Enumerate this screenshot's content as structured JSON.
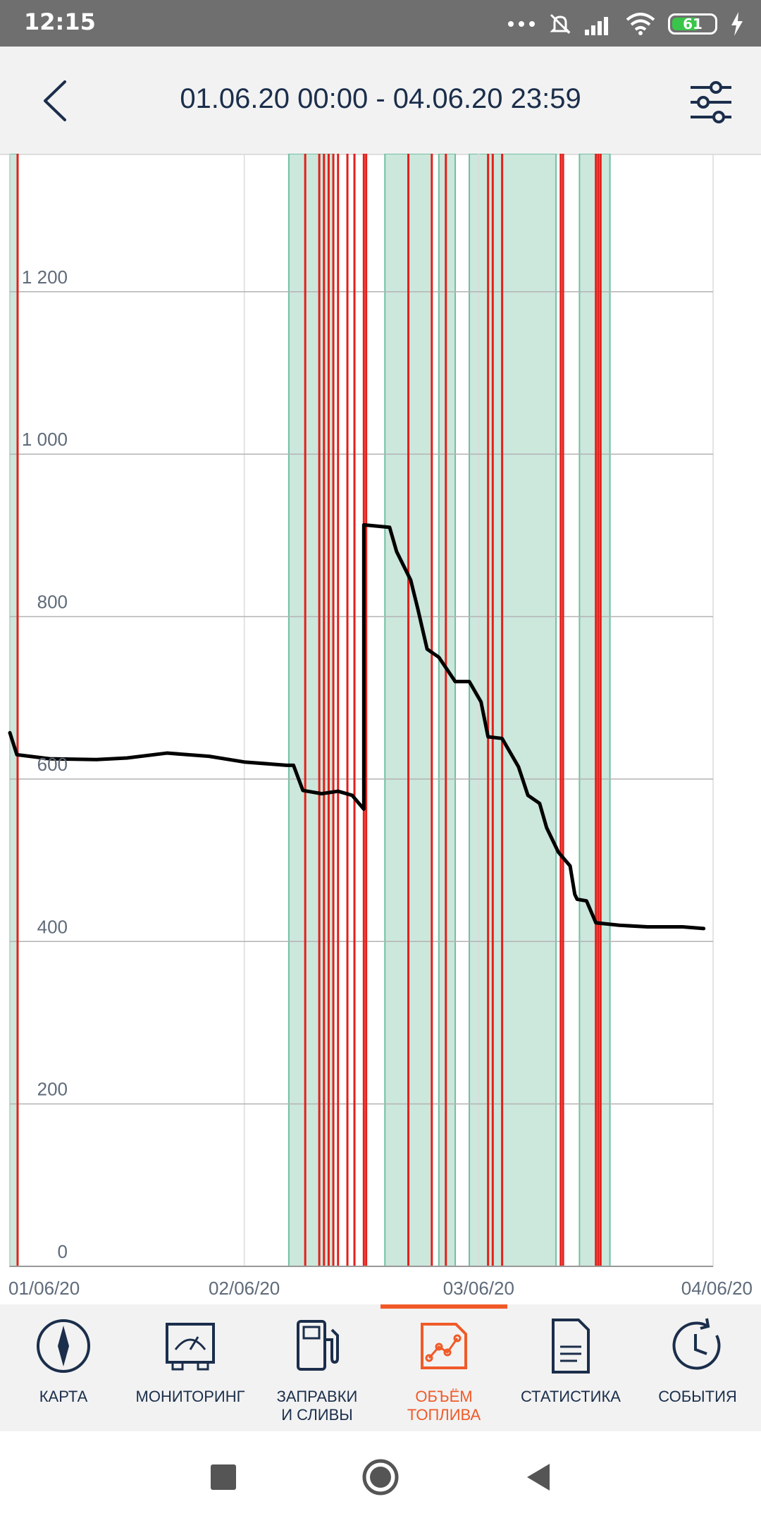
{
  "status_bar": {
    "time": "12:15",
    "battery": "61"
  },
  "header": {
    "title": "01.06.20 00:00 - 04.06.20 23:59",
    "back_icon": "chevron-left-icon",
    "filter_icon": "sliders-icon"
  },
  "chart_data": {
    "type": "line",
    "ylim": [
      0,
      1370
    ],
    "y_ticks": [
      0,
      200,
      400,
      600,
      800,
      1000,
      1200
    ],
    "y_tick_labels": [
      "0",
      "200",
      "400",
      "600",
      "800",
      "1 000",
      "1 200"
    ],
    "x_range_days": [
      0,
      3
    ],
    "x_ticks": [
      0,
      1,
      2,
      3
    ],
    "x_tick_labels": [
      "01/06/20",
      "02/06/20",
      "03/06/20",
      "04/06/20"
    ],
    "grid": true,
    "series": [
      {
        "color": "#000000",
        "x": [
          0.0,
          0.03,
          0.17,
          0.37,
          0.5,
          0.67,
          0.85,
          1.0,
          1.18,
          1.21,
          1.25,
          1.33,
          1.4,
          1.46,
          1.51,
          1.51,
          1.62,
          1.65,
          1.71,
          1.74,
          1.78,
          1.83,
          1.9,
          1.96,
          2.01,
          2.04,
          2.1,
          2.17,
          2.21,
          2.26,
          2.29,
          2.34,
          2.39,
          2.41,
          2.42,
          2.46,
          2.5,
          2.6,
          2.72,
          2.87,
          2.96
        ],
        "values": [
          657,
          630,
          625,
          624,
          626,
          632,
          628,
          621,
          617,
          617,
          586,
          582,
          585,
          580,
          563,
          913,
          910,
          880,
          845,
          810,
          760,
          750,
          720,
          720,
          695,
          652,
          650,
          615,
          580,
          570,
          540,
          510,
          493,
          458,
          452,
          450,
          423,
          420,
          418,
          418,
          416
        ]
      }
    ],
    "green_zones_days": [
      [
        0.0,
        0.033
      ],
      [
        1.19,
        1.38
      ],
      [
        1.6,
        1.8
      ],
      [
        1.83,
        1.9
      ],
      [
        1.96,
        2.33
      ],
      [
        2.43,
        2.56
      ]
    ],
    "red_events_days": [
      0.033,
      1.26,
      1.32,
      1.34,
      1.36,
      1.38,
      1.4,
      1.44,
      1.47,
      1.51,
      1.52,
      1.7,
      1.8,
      1.86,
      2.04,
      2.06,
      2.1,
      2.35,
      2.36,
      2.5,
      2.51,
      2.52
    ]
  },
  "nav": {
    "items": [
      {
        "label": "КАРТА",
        "icon": "compass-icon"
      },
      {
        "label": "МОНИТОРИНГ",
        "icon": "gauge-icon"
      },
      {
        "label": "ЗАПРАВКИ\nИ СЛИВЫ",
        "icon": "fuel-pump-icon"
      },
      {
        "label": "ОБЪЁМ\nТОПЛИВА",
        "icon": "fuel-graph-icon"
      },
      {
        "label": "СТАТИСТИКА",
        "icon": "document-icon"
      },
      {
        "label": "СОБЫТИЯ",
        "icon": "clock-history-icon"
      }
    ],
    "active_index": 3
  },
  "colors": {
    "accent": "#f05a28",
    "text": "#1b2e4b",
    "zone_fill": "#cce7dc",
    "zone_edge": "#72bfa3",
    "event_line": "#e3201b",
    "grid": "#b3b3b3"
  }
}
